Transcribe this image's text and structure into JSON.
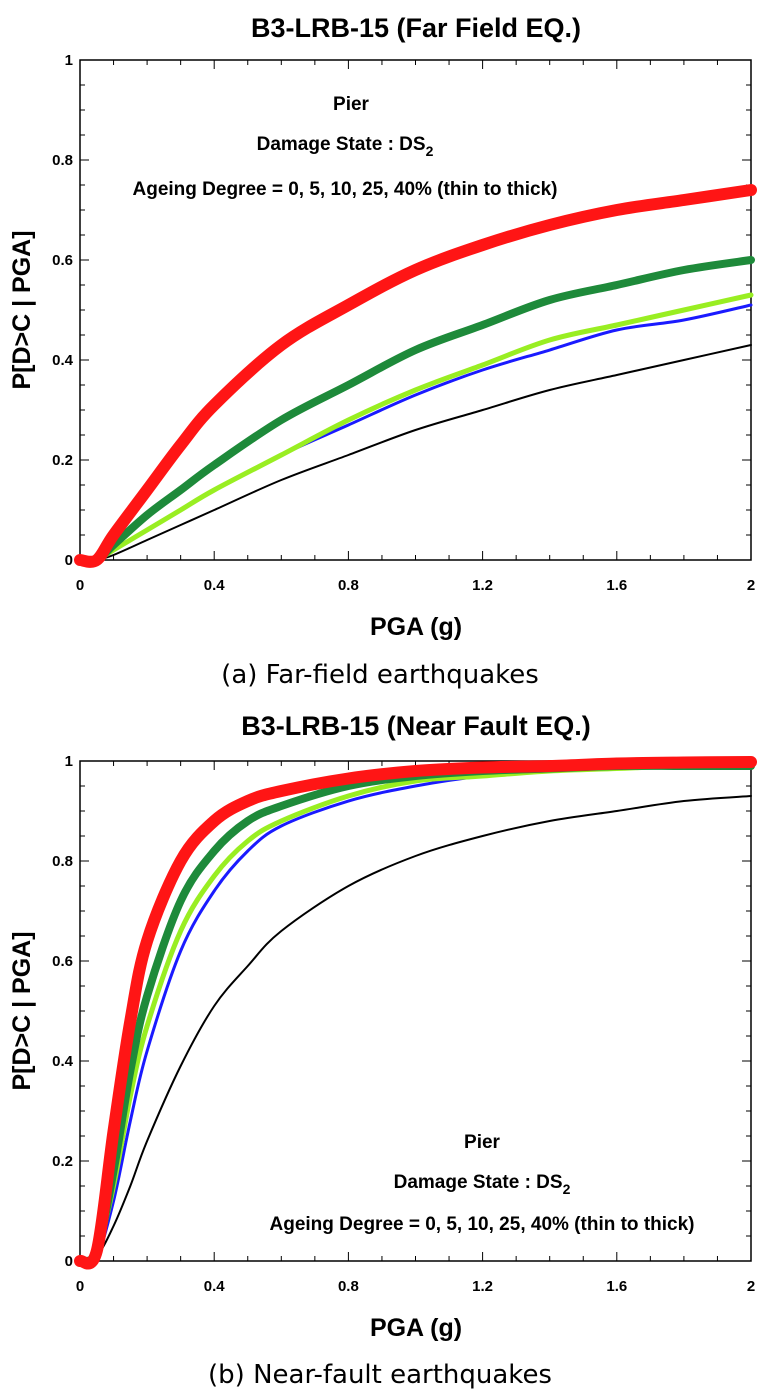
{
  "chart_data": [
    {
      "type": "line",
      "title": "B3-LRB-15 (Far Field EQ.)",
      "caption": "(a) Far-field earthquakes",
      "xlabel": "PGA (g)",
      "ylabel": "P[D>C | PGA]",
      "xlim": [
        0,
        2
      ],
      "ylim": [
        0,
        1
      ],
      "xticks": [
        "0",
        "0.4",
        "0.8",
        "1.2",
        "1.6",
        "2"
      ],
      "yticks": [
        "0",
        "0.2",
        "0.4",
        "0.6",
        "0.8",
        "1"
      ],
      "annotation": {
        "line1": "Pier",
        "line2": "Damage State : DS",
        "line2_sub": "2",
        "line3": "Ageing Degree = 0, 5, 10, 25, 40% (thin to thick)"
      },
      "x": [
        0.0,
        0.05,
        0.1,
        0.2,
        0.3,
        0.4,
        0.6,
        0.8,
        1.0,
        1.2,
        1.4,
        1.6,
        1.8,
        2.0
      ],
      "series": [
        {
          "values": [
            0.0,
            0.0,
            0.01,
            0.04,
            0.07,
            0.1,
            0.16,
            0.21,
            0.26,
            0.3,
            0.34,
            0.37,
            0.4,
            0.43
          ],
          "color": "#000000",
          "width": 2
        },
        {
          "values": [
            0.0,
            0.0,
            0.02,
            0.06,
            0.1,
            0.14,
            0.21,
            0.27,
            0.33,
            0.38,
            0.42,
            0.46,
            0.48,
            0.51
          ],
          "color": "#1a1aff",
          "width": 3
        },
        {
          "values": [
            0.0,
            0.0,
            0.02,
            0.06,
            0.1,
            0.14,
            0.21,
            0.28,
            0.34,
            0.39,
            0.44,
            0.47,
            0.5,
            0.53
          ],
          "color": "#99ee22",
          "width": 5
        },
        {
          "values": [
            0.0,
            0.0,
            0.03,
            0.09,
            0.14,
            0.19,
            0.28,
            0.35,
            0.42,
            0.47,
            0.52,
            0.55,
            0.58,
            0.6
          ],
          "color": "#1e8a3a",
          "width": 8
        },
        {
          "values": [
            0.0,
            0.0,
            0.05,
            0.14,
            0.23,
            0.31,
            0.43,
            0.51,
            0.58,
            0.63,
            0.67,
            0.7,
            0.72,
            0.74
          ],
          "color": "#ff1515",
          "width": 12
        }
      ]
    },
    {
      "type": "line",
      "title": "B3-LRB-15 (Near Fault EQ.)",
      "caption": "(b) Near-fault earthquakes",
      "xlabel": "PGA (g)",
      "ylabel": "P[D>C | PGA]",
      "xlim": [
        0,
        2
      ],
      "ylim": [
        0,
        1
      ],
      "xticks": [
        "0",
        "0.4",
        "0.8",
        "1.2",
        "1.6",
        "2"
      ],
      "yticks": [
        "0",
        "0.2",
        "0.4",
        "0.6",
        "0.8",
        "1"
      ],
      "annotation": {
        "line1": "Pier",
        "line2": "Damage State : DS",
        "line2_sub": "2",
        "line3": "Ageing Degree = 0, 5, 10, 25, 40% (thin to thick)"
      },
      "x": [
        0.0,
        0.05,
        0.1,
        0.15,
        0.2,
        0.3,
        0.4,
        0.5,
        0.6,
        0.8,
        1.0,
        1.2,
        1.4,
        1.6,
        1.8,
        2.0
      ],
      "series": [
        {
          "values": [
            0.0,
            0.01,
            0.07,
            0.15,
            0.24,
            0.39,
            0.51,
            0.59,
            0.66,
            0.75,
            0.81,
            0.85,
            0.88,
            0.9,
            0.92,
            0.93
          ],
          "color": "#000000",
          "width": 2
        },
        {
          "values": [
            0.0,
            0.01,
            0.12,
            0.28,
            0.42,
            0.62,
            0.74,
            0.82,
            0.87,
            0.92,
            0.95,
            0.97,
            0.98,
            0.985,
            0.99,
            0.99
          ],
          "color": "#1a1aff",
          "width": 3
        },
        {
          "values": [
            0.0,
            0.02,
            0.15,
            0.33,
            0.47,
            0.66,
            0.77,
            0.84,
            0.88,
            0.93,
            0.96,
            0.97,
            0.98,
            0.985,
            0.99,
            0.99
          ],
          "color": "#99ee22",
          "width": 5
        },
        {
          "values": [
            0.0,
            0.02,
            0.18,
            0.38,
            0.53,
            0.72,
            0.82,
            0.88,
            0.91,
            0.95,
            0.97,
            0.98,
            0.985,
            0.99,
            0.99,
            0.99
          ],
          "color": "#1e8a3a",
          "width": 8
        },
        {
          "values": [
            0.0,
            0.02,
            0.26,
            0.48,
            0.64,
            0.8,
            0.88,
            0.92,
            0.94,
            0.965,
            0.98,
            0.987,
            0.99,
            0.995,
            0.997,
            0.998
          ],
          "color": "#ff1515",
          "width": 12
        }
      ]
    }
  ]
}
